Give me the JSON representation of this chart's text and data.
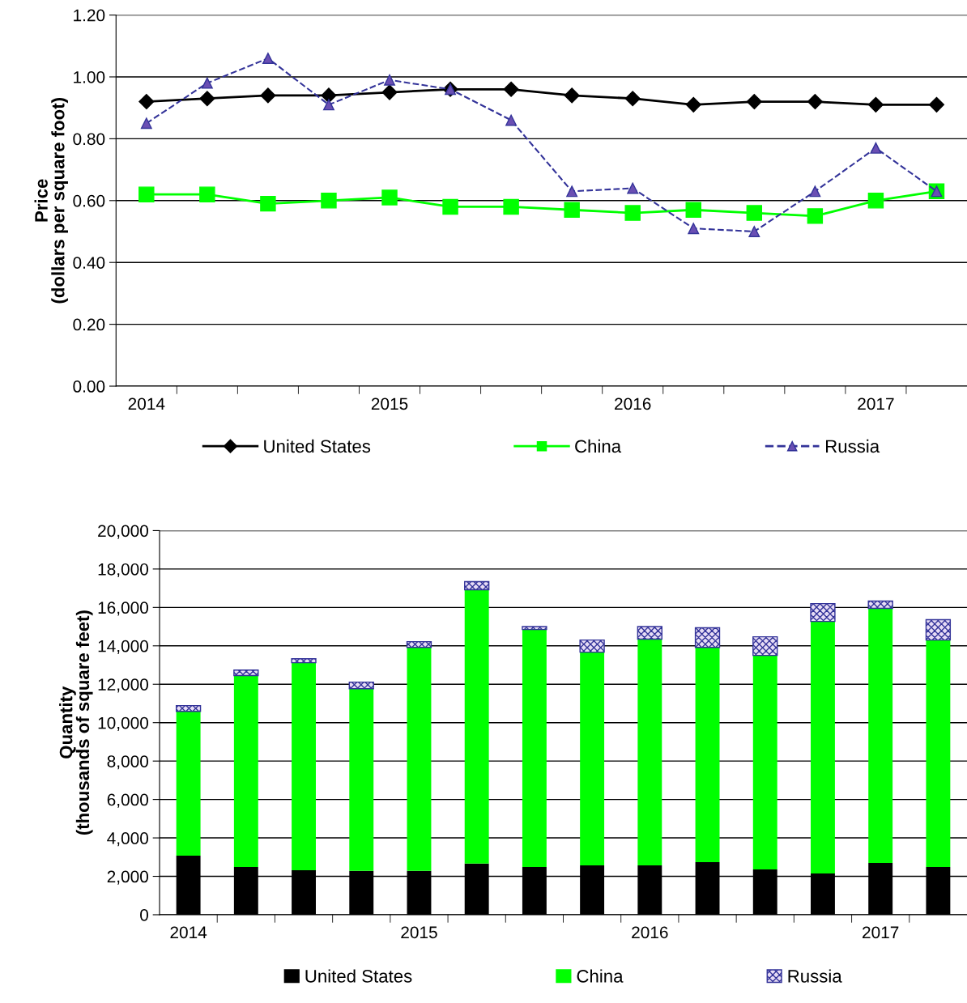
{
  "chart_data": [
    {
      "type": "line",
      "ylabel": "Price\n(dollars per square foot)",
      "categories": [
        "2014",
        null,
        null,
        null,
        "2015",
        null,
        null,
        null,
        "2016",
        null,
        null,
        null,
        "2017",
        null
      ],
      "series": [
        {
          "name": "United States",
          "color": "#000000",
          "marker": "diamond",
          "line_style": "solid",
          "values": [
            0.92,
            0.93,
            0.94,
            0.94,
            0.95,
            0.96,
            0.96,
            0.94,
            0.93,
            0.91,
            0.92,
            0.92,
            0.91,
            0.91
          ]
        },
        {
          "name": "China",
          "color": "#00ff00",
          "marker": "square",
          "line_style": "solid",
          "values": [
            0.62,
            0.62,
            0.59,
            0.6,
            0.61,
            0.58,
            0.58,
            0.57,
            0.56,
            0.57,
            0.56,
            0.55,
            0.6,
            0.63
          ]
        },
        {
          "name": "Russia",
          "color": "#333399",
          "marker": "triangle",
          "line_style": "dashed",
          "values": [
            0.85,
            0.98,
            1.06,
            0.91,
            0.99,
            0.96,
            0.86,
            0.63,
            0.64,
            0.51,
            0.5,
            0.63,
            0.77,
            0.63
          ]
        }
      ],
      "ylim": [
        0,
        1.2
      ],
      "yticks": [
        {
          "value": 0,
          "label": "0.00"
        },
        {
          "value": 0.2,
          "label": "0.20"
        },
        {
          "value": 0.4,
          "label": "0.40"
        },
        {
          "value": 0.6,
          "label": "0.60"
        },
        {
          "value": 0.8,
          "label": "0.80"
        },
        {
          "value": 1.0,
          "label": "1.00"
        },
        {
          "value": 1.2,
          "label": "1.20"
        }
      ],
      "grid": "y",
      "legend": "bottom"
    },
    {
      "type": "bar",
      "stacked": true,
      "ylabel": "Quantity\n(thousands of square feet)",
      "categories": [
        "2014",
        null,
        null,
        null,
        "2015",
        null,
        null,
        null,
        "2016",
        null,
        null,
        null,
        "2017",
        null
      ],
      "series": [
        {
          "name": "United States",
          "color": "#000000",
          "values": [
            3080,
            2490,
            2320,
            2280,
            2280,
            2660,
            2490,
            2570,
            2570,
            2740,
            2360,
            2150,
            2700,
            2490
          ]
        },
        {
          "name": "China",
          "color": "#00ff00",
          "values": [
            7510,
            9960,
            10800,
            9490,
            11640,
            14260,
            12360,
            11100,
            11780,
            11180,
            11140,
            13120,
            13250,
            11810
          ]
        },
        {
          "name": "Russia",
          "color": "#333399",
          "values": [
            300,
            290,
            210,
            340,
            300,
            420,
            150,
            630,
            650,
            1020,
            970,
            930,
            380,
            1060
          ]
        }
      ],
      "ylim": [
        0,
        20000
      ],
      "yticks": [
        {
          "value": 0,
          "label": "0"
        },
        {
          "value": 2000,
          "label": "2,000"
        },
        {
          "value": 4000,
          "label": "4,000"
        },
        {
          "value": 6000,
          "label": "6,000"
        },
        {
          "value": 8000,
          "label": "8,000"
        },
        {
          "value": 10000,
          "label": "10,000"
        },
        {
          "value": 12000,
          "label": "12,000"
        },
        {
          "value": 14000,
          "label": "14,000"
        },
        {
          "value": 16000,
          "label": "16,000"
        },
        {
          "value": 18000,
          "label": "18,000"
        },
        {
          "value": 20000,
          "label": "20,000"
        }
      ],
      "grid": "y",
      "legend": "bottom"
    }
  ]
}
